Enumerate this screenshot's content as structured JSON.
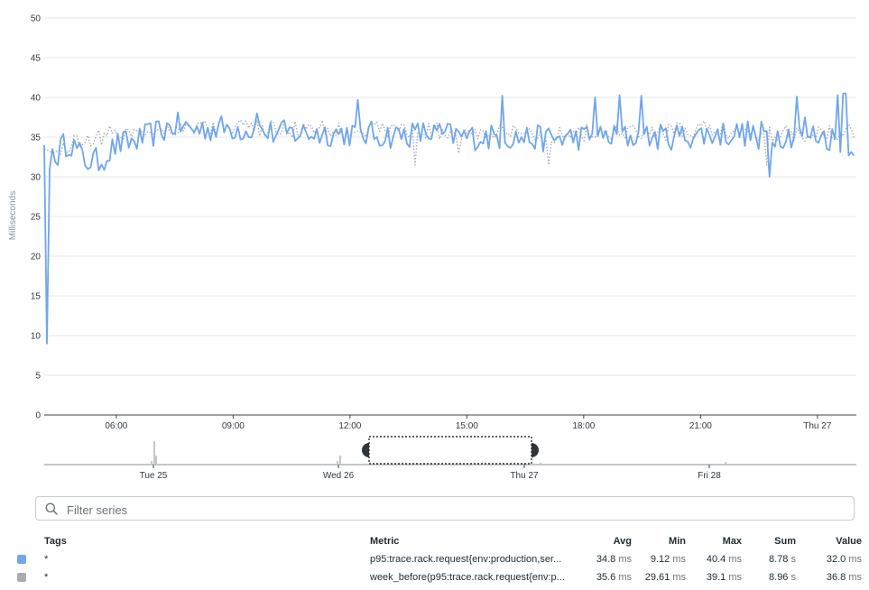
{
  "chart_data": {
    "type": "line",
    "ylabel": "Milliseconds",
    "ylim": [
      0,
      50
    ],
    "yticks": [
      "0",
      "5",
      "10",
      "15",
      "20",
      "25",
      "30",
      "35",
      "40",
      "45",
      "50"
    ],
    "xticks": [
      "06:00",
      "09:00",
      "12:00",
      "15:00",
      "18:00",
      "21:00",
      "Thu 27"
    ],
    "xtick_hours": [
      6,
      9,
      12,
      15,
      18,
      21,
      24
    ],
    "xlim_hours": [
      4.15,
      25.0
    ],
    "series": [
      {
        "name": "p95:trace.rack.request{env:production,ser...}",
        "color": "#6fa6ec",
        "style": "solid",
        "anchors": [
          [
            4.15,
            34.0
          ],
          [
            4.2,
            9.0
          ],
          [
            4.27,
            33.0
          ],
          [
            4.4,
            31.5
          ],
          [
            4.55,
            33.5
          ],
          [
            4.8,
            34.5
          ],
          [
            5.2,
            32.0
          ],
          [
            5.6,
            32.0
          ],
          [
            6.0,
            34.0
          ],
          [
            6.5,
            34.5
          ],
          [
            7.0,
            35.5
          ],
          [
            7.5,
            36.5
          ],
          [
            8.0,
            36.0
          ],
          [
            9.0,
            36.2
          ],
          [
            10.0,
            35.5
          ],
          [
            11.0,
            35.5
          ],
          [
            12.0,
            35.5
          ],
          [
            13.0,
            35.2
          ],
          [
            14.0,
            35.5
          ],
          [
            15.0,
            35.0
          ],
          [
            16.0,
            35.0
          ],
          [
            17.0,
            34.8
          ],
          [
            18.0,
            35.0
          ],
          [
            19.0,
            35.0
          ],
          [
            20.0,
            35.0
          ],
          [
            21.0,
            35.3
          ],
          [
            22.0,
            35.5
          ],
          [
            23.0,
            35.3
          ],
          [
            24.0,
            35.3
          ],
          [
            25.0,
            34.0
          ]
        ],
        "spikes": [
          [
            9.6,
            38.0
          ],
          [
            12.2,
            39.7
          ],
          [
            15.9,
            40.2
          ],
          [
            18.3,
            40.0
          ],
          [
            18.9,
            40.3
          ],
          [
            19.5,
            40.2
          ],
          [
            22.5,
            33.5
          ],
          [
            22.8,
            30.0
          ],
          [
            23.5,
            40.1
          ],
          [
            23.7,
            37.5
          ],
          [
            24.5,
            40.3
          ],
          [
            24.7,
            40.5
          ]
        ]
      },
      {
        "name": "week_before(p95:trace.rack.request{env:p...})",
        "color": "#a8abb0",
        "style": "dotted",
        "anchors": [
          [
            4.15,
            33.5
          ],
          [
            4.4,
            33.0
          ],
          [
            5.0,
            34.5
          ],
          [
            6.0,
            35.5
          ],
          [
            7.0,
            36.0
          ],
          [
            8.0,
            36.3
          ],
          [
            9.0,
            36.2
          ],
          [
            10.0,
            36.0
          ],
          [
            11.0,
            36.0
          ],
          [
            12.0,
            36.0
          ],
          [
            13.0,
            36.0
          ],
          [
            14.0,
            35.8
          ],
          [
            15.0,
            35.5
          ],
          [
            16.0,
            35.5
          ],
          [
            17.0,
            35.2
          ],
          [
            18.0,
            35.5
          ],
          [
            19.0,
            35.5
          ],
          [
            20.0,
            35.5
          ],
          [
            21.0,
            36.0
          ],
          [
            22.0,
            35.8
          ],
          [
            23.0,
            35.5
          ],
          [
            24.0,
            35.5
          ],
          [
            25.0,
            36.0
          ]
        ],
        "spikes": [
          [
            13.7,
            31.5
          ],
          [
            14.8,
            33.0
          ],
          [
            17.1,
            31.5
          ],
          [
            22.7,
            31.5
          ]
        ]
      }
    ]
  },
  "overview": {
    "labels": [
      "Tue 25",
      "Wed 26",
      "Thu 27",
      "Fri 28"
    ]
  },
  "filter": {
    "placeholder": "Filter series"
  },
  "legend": {
    "headers": {
      "tags": "Tags",
      "metric": "Metric",
      "avg": "Avg",
      "min": "Min",
      "max": "Max",
      "sum": "Sum",
      "value": "Value"
    },
    "rows": [
      {
        "color": "#6fa6ec",
        "tags": "*",
        "metric": "p95:trace.rack.request{env:production,ser...",
        "avg": "34.8",
        "avg_unit": "ms",
        "min": "9.12",
        "min_unit": "ms",
        "max": "40.4",
        "max_unit": "ms",
        "sum": "8.78",
        "sum_unit": "s",
        "value": "32.0",
        "value_unit": "ms"
      },
      {
        "color": "#a8abb0",
        "tags": "*",
        "metric": "week_before(p95:trace.rack.request{env:p...",
        "avg": "35.6",
        "avg_unit": "ms",
        "min": "29.61",
        "min_unit": "ms",
        "max": "39.1",
        "max_unit": "ms",
        "sum": "8.96",
        "sum_unit": "s",
        "value": "36.8",
        "value_unit": "ms"
      }
    ]
  }
}
